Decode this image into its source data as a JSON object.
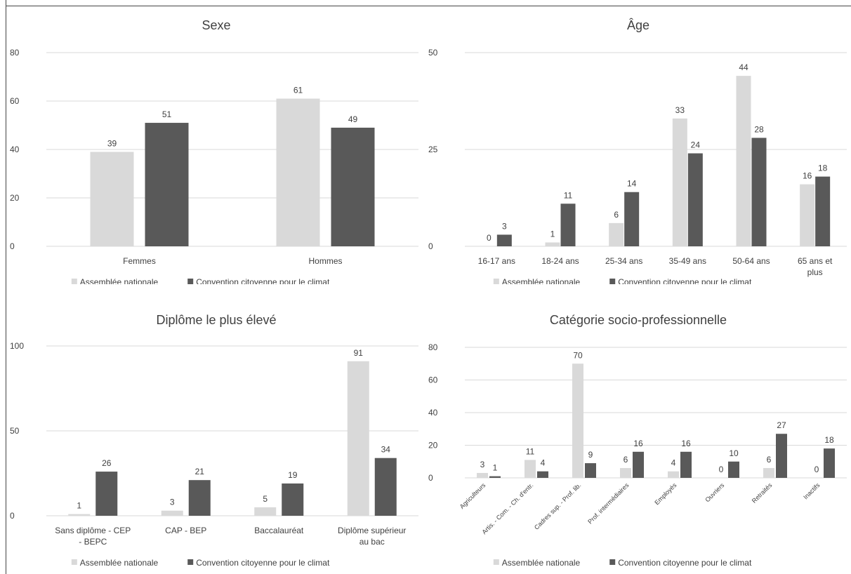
{
  "colors": {
    "series_light": "#d9d9d9",
    "series_dark": "#595959",
    "grid": "#d9d9d9",
    "text": "#404040",
    "title": "#404040"
  },
  "chart_data": [
    {
      "type": "bar",
      "title": "Sexe",
      "categories": [
        "Femmes",
        "Hommes"
      ],
      "series": [
        {
          "name": "Assemblée nationale",
          "values": [
            39,
            61
          ]
        },
        {
          "name": "Convention citoyenne pour le climat",
          "values": [
            51,
            49
          ]
        }
      ],
      "yticks": [
        0,
        20,
        40,
        60,
        80
      ],
      "ylim": [
        0,
        80
      ],
      "grid": true,
      "legend": "bottom",
      "rotate_labels": false
    },
    {
      "type": "bar",
      "title": "Âge",
      "categories": [
        "16-17 ans",
        "18-24 ans",
        "25-34 ans",
        "35-49 ans",
        "50-64 ans",
        "65 ans et plus"
      ],
      "series": [
        {
          "name": "Assemblée nationale",
          "values": [
            0,
            1,
            6,
            33,
            44,
            16
          ]
        },
        {
          "name": "Convention citoyenne pour le climat",
          "values": [
            3,
            11,
            14,
            24,
            28,
            18
          ]
        }
      ],
      "yticks": [
        0,
        25,
        50
      ],
      "ylim": [
        0,
        50
      ],
      "grid": true,
      "legend": "bottom",
      "rotate_labels": false
    },
    {
      "type": "bar",
      "title": "Diplôme le plus élevé",
      "categories": [
        "Sans diplôme - CEP - BEPC",
        "CAP - BEP",
        "Baccalauréat",
        "Diplôme supérieur au bac"
      ],
      "series": [
        {
          "name": "Assemblée nationale",
          "values": [
            1,
            3,
            5,
            91
          ]
        },
        {
          "name": "Convention citoyenne pour le climat",
          "values": [
            26,
            21,
            19,
            34
          ]
        }
      ],
      "yticks": [
        0,
        50,
        100
      ],
      "ylim": [
        0,
        100
      ],
      "grid": true,
      "legend": "bottom",
      "rotate_labels": false
    },
    {
      "type": "bar",
      "title": "Catégorie socio-professionnelle",
      "categories": [
        "Agriculteurs",
        "Artis. - Com. - Ch. d'entr.",
        "Cadres sup. - Prof. lib.",
        "Prof. intermédiaires",
        "Employés",
        "Ouvriers",
        "Retraités",
        "Inactifs"
      ],
      "series": [
        {
          "name": "Assemblée nationale",
          "values": [
            3,
            11,
            70,
            6,
            4,
            0,
            6,
            0
          ]
        },
        {
          "name": "Convention citoyenne pour le climat",
          "values": [
            1,
            4,
            9,
            16,
            16,
            10,
            27,
            18
          ]
        }
      ],
      "yticks": [
        0,
        20,
        40,
        60,
        80
      ],
      "ylim": [
        0,
        80
      ],
      "grid": true,
      "legend": "bottom",
      "rotate_labels": true
    }
  ]
}
